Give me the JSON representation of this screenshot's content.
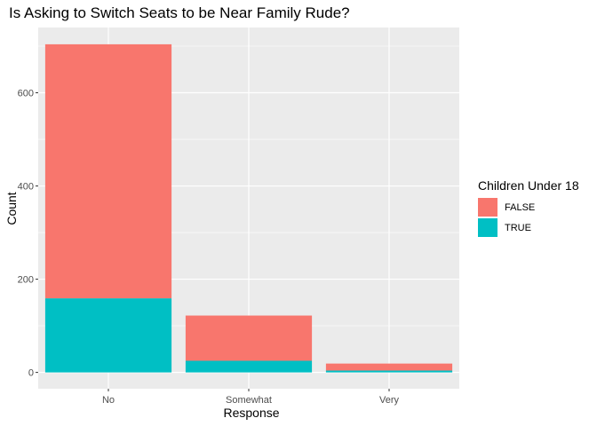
{
  "chart_data": {
    "type": "bar",
    "stacked": true,
    "title": "Is Asking to Switch Seats to be Near Family Rude?",
    "xlabel": "Response",
    "ylabel": "Count",
    "categories": [
      "No",
      "Somewhat",
      "Very"
    ],
    "series": [
      {
        "name": "FALSE",
        "color": "#F8766D",
        "values": [
          545,
          97,
          15
        ]
      },
      {
        "name": "TRUE",
        "color": "#00BFC4",
        "values": [
          159,
          25,
          4
        ]
      }
    ],
    "ylim": [
      -35,
      740
    ],
    "yticks": [
      0,
      200,
      400,
      600
    ],
    "grid": true,
    "legend": {
      "title": "Children Under 18",
      "position": "right"
    },
    "colors": {
      "panel": "#EBEBEB",
      "grid": "#FFFFFF",
      "tick_text": "#4d4d4d"
    }
  }
}
